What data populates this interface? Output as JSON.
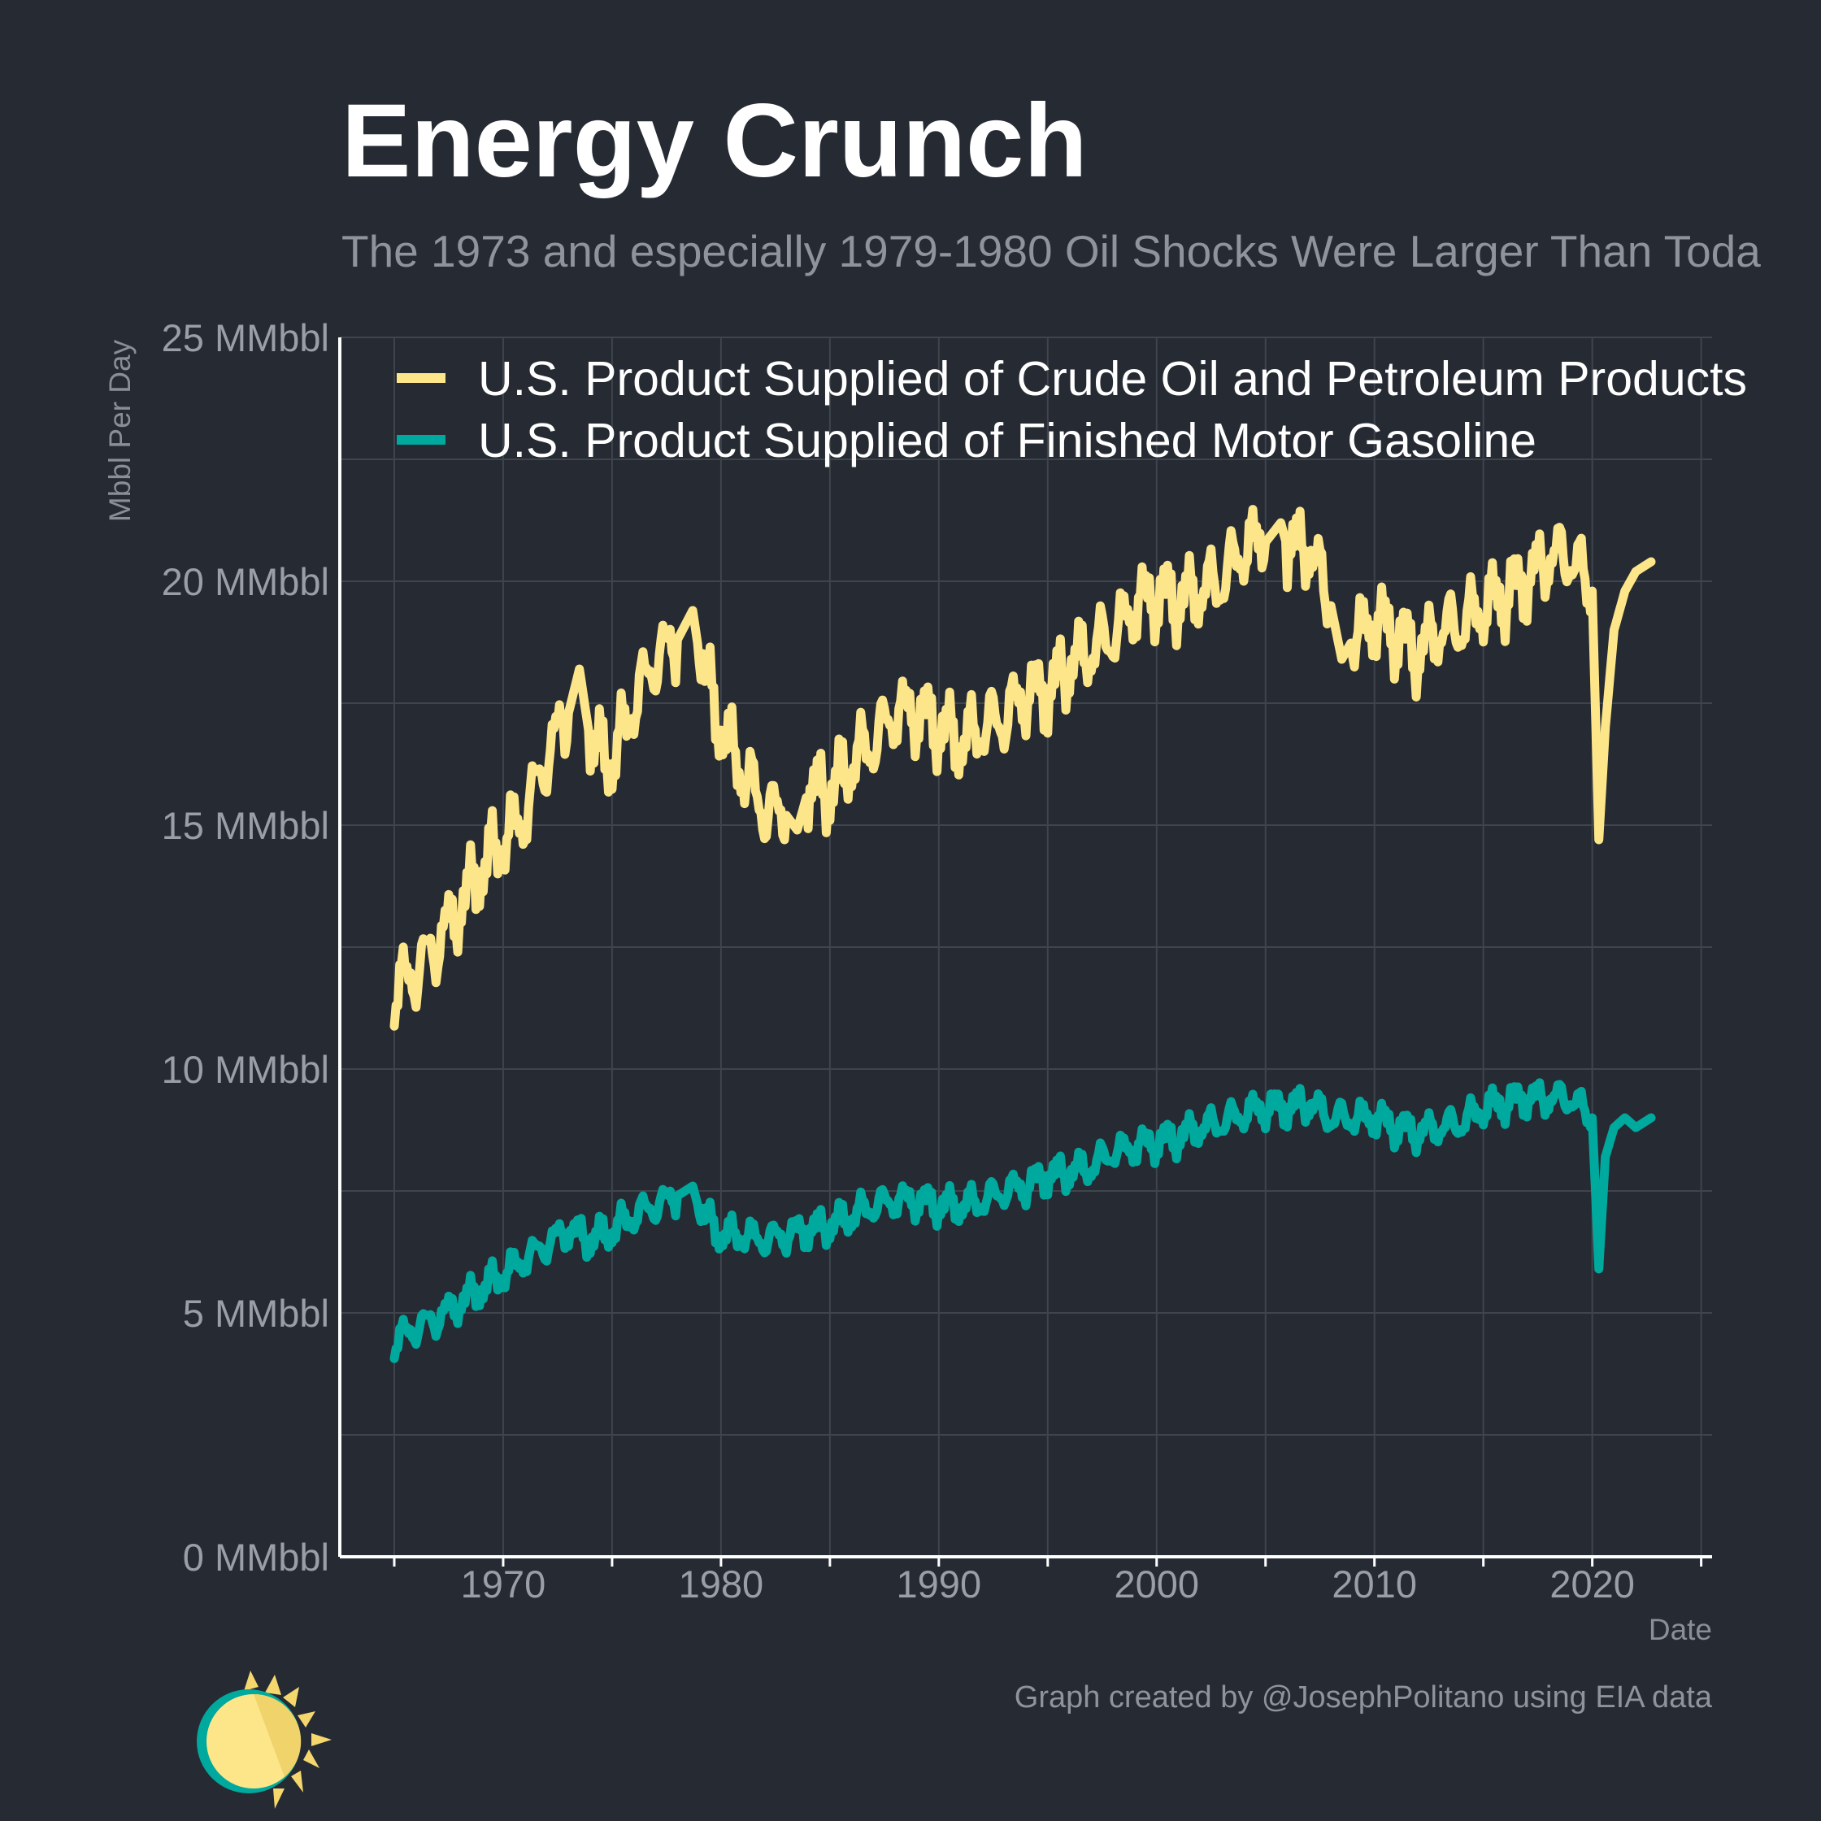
{
  "header": {
    "title": "Energy Crunch",
    "subtitle": "The 1973 and especially 1979-1980 Oil Shocks Were Larger Than Toda"
  },
  "caption": "Graph created by @JosephPolitano using EIA data",
  "colors": {
    "background": "#252a33",
    "crude": "#fde68a",
    "gasoline": "#00a99d",
    "grid": "#3f444d",
    "axis": "#ffffff"
  },
  "chart_data": {
    "type": "line",
    "title": "Energy Crunch",
    "subtitle": "The 1973 and especially 1979-1980 Oil Shocks Were Larger Than Toda",
    "xlabel": "Date",
    "ylabel": "Mbbl Per Day",
    "xlim": [
      1962.5,
      2025.5
    ],
    "ylim": [
      0,
      25
    ],
    "x_ticks": [
      "1970",
      "1980",
      "1990",
      "2000",
      "2010",
      "2020"
    ],
    "y_ticks": [
      "0 MMbbl",
      "5 MMbbl",
      "10 MMbbl",
      "15 MMbbl",
      "20 MMbbl",
      "25 MMbbl"
    ],
    "grid": true,
    "legend_position": "top-left",
    "series": [
      {
        "name": "U.S. Product Supplied of Crude Oil and Petroleum Products",
        "color": "#fde68a",
        "x": [
          1965.0,
          1966.0,
          1967.0,
          1968.0,
          1969.0,
          1970.0,
          1971.0,
          1972.0,
          1973.0,
          1973.5,
          1974.0,
          1975.0,
          1976.0,
          1977.0,
          1978.0,
          1978.7,
          1979.0,
          1980.0,
          1981.0,
          1982.0,
          1983.0,
          1983.5,
          1984.0,
          1985.0,
          1986.0,
          1987.0,
          1988.0,
          1989.0,
          1990.0,
          1991.0,
          1992.0,
          1993.0,
          1994.0,
          1995.0,
          1996.0,
          1997.0,
          1998.0,
          1999.0,
          2000.0,
          2001.0,
          2002.0,
          2003.0,
          2004.0,
          2005.0,
          2005.7,
          2006.0,
          2007.0,
          2008.0,
          2008.5,
          2009.0,
          2010.0,
          2011.0,
          2012.0,
          2013.0,
          2014.0,
          2015.0,
          2016.0,
          2017.0,
          2018.0,
          2019.0,
          2020.0,
          2020.3,
          2020.6,
          2021.0,
          2021.5,
          2022.0,
          2022.7
        ],
        "y": [
          11.6,
          12.0,
          12.6,
          13.3,
          14.1,
          14.7,
          15.2,
          16.4,
          17.3,
          18.2,
          16.7,
          16.3,
          17.5,
          18.4,
          18.8,
          19.4,
          18.5,
          17.0,
          16.1,
          15.3,
          15.2,
          14.9,
          15.7,
          15.7,
          16.3,
          16.7,
          17.3,
          17.3,
          17.0,
          16.7,
          17.0,
          17.2,
          17.7,
          17.7,
          18.3,
          18.6,
          18.9,
          19.5,
          19.7,
          19.6,
          19.8,
          20.0,
          20.7,
          20.8,
          21.2,
          20.7,
          20.7,
          19.5,
          18.4,
          18.8,
          19.2,
          18.9,
          18.5,
          19.0,
          19.1,
          19.5,
          19.7,
          20.0,
          20.5,
          20.5,
          19.8,
          14.7,
          17.0,
          19.0,
          19.8,
          20.2,
          20.4
        ]
      },
      {
        "name": "U.S. Product Supplied of Finished Motor Gasoline",
        "color": "#00a99d",
        "x": [
          1965.0,
          1966.0,
          1967.0,
          1968.0,
          1969.0,
          1970.0,
          1971.0,
          1972.0,
          1973.0,
          1974.0,
          1975.0,
          1976.0,
          1977.0,
          1978.0,
          1978.7,
          1979.0,
          1980.0,
          1981.0,
          1982.0,
          1983.0,
          1984.0,
          1985.0,
          1986.0,
          1987.0,
          1988.0,
          1989.0,
          1990.0,
          1991.0,
          1992.0,
          1993.0,
          1994.0,
          1995.0,
          1996.0,
          1997.0,
          1998.0,
          1999.0,
          2000.0,
          2001.0,
          2002.0,
          2003.0,
          2004.0,
          2005.0,
          2006.0,
          2007.0,
          2008.0,
          2009.0,
          2010.0,
          2011.0,
          2012.0,
          2013.0,
          2014.0,
          2015.0,
          2016.0,
          2017.0,
          2018.0,
          2019.0,
          2020.0,
          2020.3,
          2020.6,
          2021.0,
          2021.5,
          2022.0,
          2022.7
        ],
        "y": [
          4.4,
          4.7,
          4.9,
          5.2,
          5.5,
          5.8,
          6.1,
          6.4,
          6.7,
          6.5,
          6.7,
          7.0,
          7.2,
          7.4,
          7.6,
          7.1,
          6.6,
          6.6,
          6.5,
          6.6,
          6.7,
          6.8,
          7.0,
          7.2,
          7.3,
          7.3,
          7.2,
          7.2,
          7.3,
          7.5,
          7.6,
          7.8,
          7.9,
          8.0,
          8.3,
          8.4,
          8.5,
          8.6,
          8.8,
          8.9,
          9.1,
          9.2,
          9.2,
          9.3,
          9.0,
          9.0,
          9.0,
          8.8,
          8.7,
          8.8,
          8.9,
          9.2,
          9.3,
          9.4,
          9.4,
          9.4,
          9.0,
          5.9,
          8.2,
          8.8,
          9.0,
          8.8,
          9.0
        ]
      }
    ]
  }
}
